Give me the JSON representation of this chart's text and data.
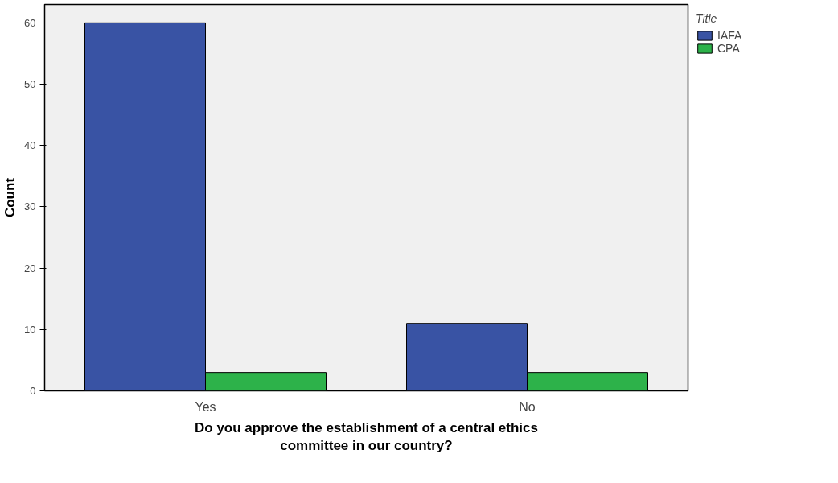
{
  "chart_data": {
    "type": "bar",
    "xlabel": "Do you approve the establishment of a central ethics committee in our country?",
    "ylabel": "Count",
    "legend_title": "Title",
    "categories": [
      "Yes",
      "No"
    ],
    "series": [
      {
        "name": "IAFA",
        "color": "#3953a4",
        "values": [
          60,
          11
        ]
      },
      {
        "name": "CPA",
        "color": "#2db24a",
        "values": [
          3,
          3
        ]
      }
    ],
    "ylim": [
      0,
      63
    ],
    "yticks": [
      0,
      10,
      20,
      30,
      40,
      50,
      60
    ],
    "grid": false,
    "legend": "top right"
  }
}
